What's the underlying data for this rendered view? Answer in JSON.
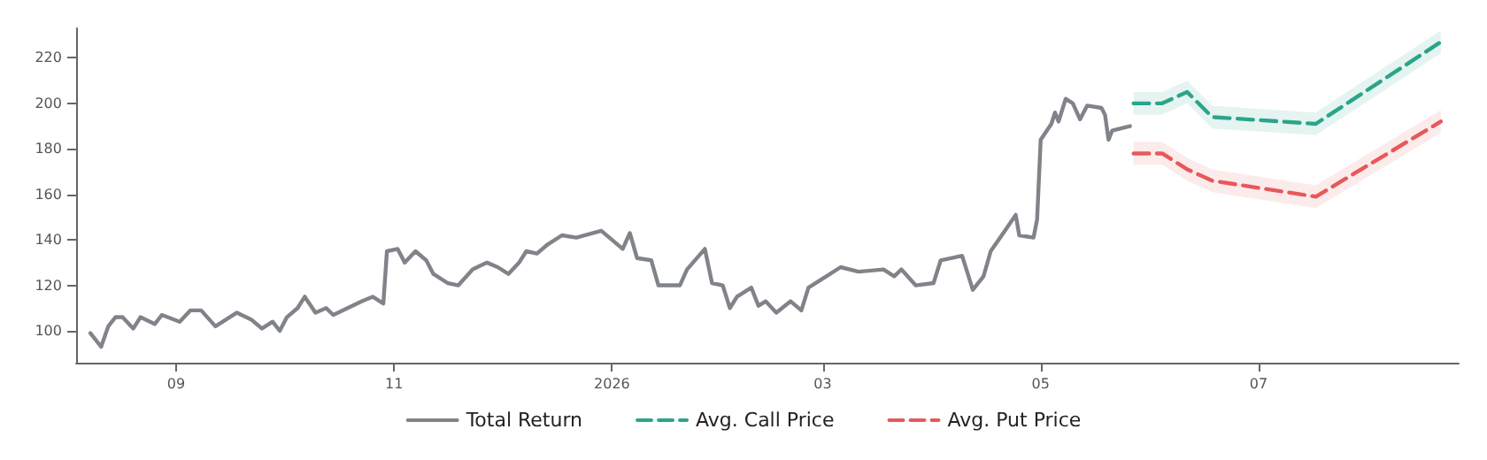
{
  "chart_data": {
    "type": "line",
    "series": [
      {
        "name": "Total Return",
        "color": "#808489",
        "line_style": "solid",
        "x": [
          "2025-08-08",
          "2025-08-11",
          "2025-08-13",
          "2025-08-15",
          "2025-08-17",
          "2025-08-20",
          "2025-08-22",
          "2025-08-26",
          "2025-08-28",
          "2025-09-02",
          "2025-09-05",
          "2025-09-08",
          "2025-09-12",
          "2025-09-15",
          "2025-09-18",
          "2025-09-22",
          "2025-09-25",
          "2025-09-28",
          "2025-09-30",
          "2025-10-02",
          "2025-10-05",
          "2025-10-07",
          "2025-10-10",
          "2025-10-13",
          "2025-10-15",
          "2025-10-19",
          "2025-10-23",
          "2025-10-26",
          "2025-10-29",
          "2025-10-30",
          "2025-11-02",
          "2025-11-04",
          "2025-11-07",
          "2025-11-10",
          "2025-11-12",
          "2025-11-16",
          "2025-11-19",
          "2025-11-23",
          "2025-11-27",
          "2025-11-30",
          "2025-12-03",
          "2025-12-06",
          "2025-12-08",
          "2025-12-11",
          "2025-12-14",
          "2025-12-18",
          "2025-12-22",
          "2025-12-29",
          "2026-01-04",
          "2026-01-06",
          "2026-01-08",
          "2026-01-12",
          "2026-01-14",
          "2026-01-20",
          "2026-01-22",
          "2026-01-27",
          "2026-01-29",
          "2026-02-01",
          "2026-02-03",
          "2026-02-05",
          "2026-02-09",
          "2026-02-11",
          "2026-02-13",
          "2026-02-16",
          "2026-02-20",
          "2026-02-23",
          "2026-02-25",
          "2026-03-02",
          "2026-03-06",
          "2026-03-11",
          "2026-03-18",
          "2026-03-21",
          "2026-03-23",
          "2026-03-27",
          "2026-04-01",
          "2026-04-03",
          "2026-04-09",
          "2026-04-12",
          "2026-04-15",
          "2026-04-17",
          "2026-04-21",
          "2026-04-24",
          "2026-04-25",
          "2026-04-29",
          "2026-04-30",
          "2026-05-01",
          "2026-05-04",
          "2026-05-05",
          "2026-05-06",
          "2026-05-08",
          "2026-05-10",
          "2026-05-12",
          "2026-05-14",
          "2026-05-18",
          "2026-05-19",
          "2026-05-20",
          "2026-05-21",
          "2026-05-26"
        ],
        "values": [
          99,
          93,
          102,
          106,
          106,
          101,
          106,
          103,
          107,
          104,
          109,
          109,
          102,
          105,
          108,
          105,
          101,
          104,
          100,
          106,
          110,
          115,
          108,
          110,
          107,
          110,
          113,
          115,
          112,
          135,
          136,
          130,
          135,
          131,
          125,
          121,
          120,
          127,
          130,
          128,
          125,
          130,
          135,
          134,
          138,
          142,
          141,
          144,
          136,
          143,
          132,
          131,
          120,
          120,
          127,
          136,
          121,
          120,
          110,
          115,
          119,
          111,
          113,
          108,
          113,
          109,
          119,
          124,
          128,
          126,
          127,
          124,
          127,
          120,
          121,
          131,
          133,
          118,
          124,
          135,
          144,
          151,
          142,
          141,
          149,
          184,
          191,
          196,
          192,
          202,
          200,
          193,
          199,
          198,
          195,
          184,
          188,
          190
        ]
      },
      {
        "name": "Avg. Call Price",
        "color": "#2aa58a",
        "line_style": "dashed",
        "x": [
          "2026-05-27",
          "2026-06-04",
          "2026-06-11",
          "2026-06-18",
          "2026-07-17",
          "2026-08-21"
        ],
        "values": [
          200,
          200,
          205,
          194,
          191,
          227
        ],
        "lower": [
          195,
          195,
          200,
          189,
          186,
          222
        ],
        "upper": [
          205,
          205,
          210,
          199,
          196,
          232
        ]
      },
      {
        "name": "Avg. Put Price",
        "color": "#e8585a",
        "line_style": "dashed",
        "x": [
          "2026-05-27",
          "2026-06-04",
          "2026-06-11",
          "2026-06-18",
          "2026-07-17",
          "2026-08-21"
        ],
        "values": [
          178,
          178,
          171,
          166,
          159,
          192
        ],
        "lower": [
          173,
          173,
          166,
          161,
          154,
          187
        ],
        "upper": [
          183,
          183,
          176,
          171,
          164,
          197
        ]
      }
    ],
    "xlim": [
      "2025-08-04",
      "2026-08-26"
    ],
    "xticks": [
      {
        "value": "2025-09-01",
        "label": "09"
      },
      {
        "value": "2025-11-01",
        "label": "11"
      },
      {
        "value": "2026-01-01",
        "label": "2026"
      },
      {
        "value": "2026-03-01",
        "label": "03"
      },
      {
        "value": "2026-05-01",
        "label": "05"
      },
      {
        "value": "2026-07-01",
        "label": "07"
      }
    ],
    "ylim": [
      86,
      233
    ],
    "yticks": [
      100,
      120,
      140,
      160,
      180,
      200,
      220
    ],
    "grid": false,
    "legend": "bottom",
    "marker": "none"
  }
}
